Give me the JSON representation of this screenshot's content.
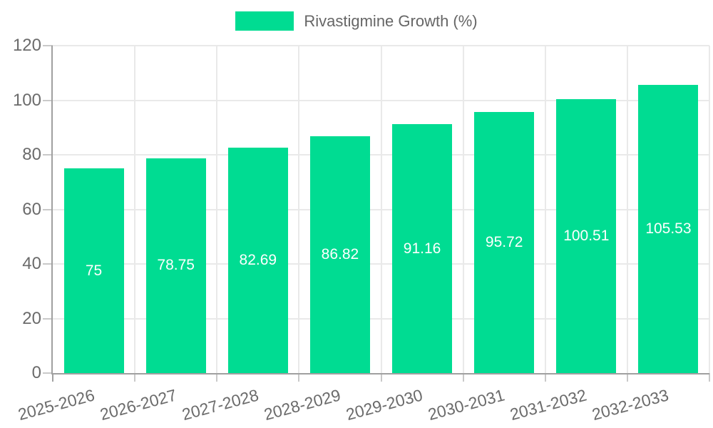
{
  "legend": {
    "label": "Rivastigmine Growth (%)",
    "swatch_color": "#00DC92"
  },
  "chart_data": {
    "type": "bar",
    "title": "Rivastigmine Growth (%)",
    "categories": [
      "2025-2026",
      "2026-2027",
      "2027-2028",
      "2028-2029",
      "2029-2030",
      "2030-2031",
      "2031-2032",
      "2032-2033"
    ],
    "series": [
      {
        "name": "Rivastigmine Growth (%)",
        "values": [
          75,
          78.75,
          82.69,
          86.82,
          91.16,
          95.72,
          100.51,
          105.53
        ],
        "value_labels": [
          "75",
          "78.75",
          "82.69",
          "86.82",
          "91.16",
          "95.72",
          "100.51",
          "105.53"
        ]
      }
    ],
    "xlabel": "",
    "ylabel": "",
    "ylim": [
      0,
      120
    ],
    "yticks": [
      0,
      20,
      40,
      60,
      80,
      100,
      120
    ],
    "grid": true,
    "legend_position": "top",
    "bar_color": "#00DC92",
    "value_label_color": "#ffffff",
    "axis_text_color": "#6b6b6b",
    "grid_color": "#e9e9e9",
    "axis_line_color": "#a0a0a0",
    "tick_mark_color": "#c9c9c9"
  }
}
